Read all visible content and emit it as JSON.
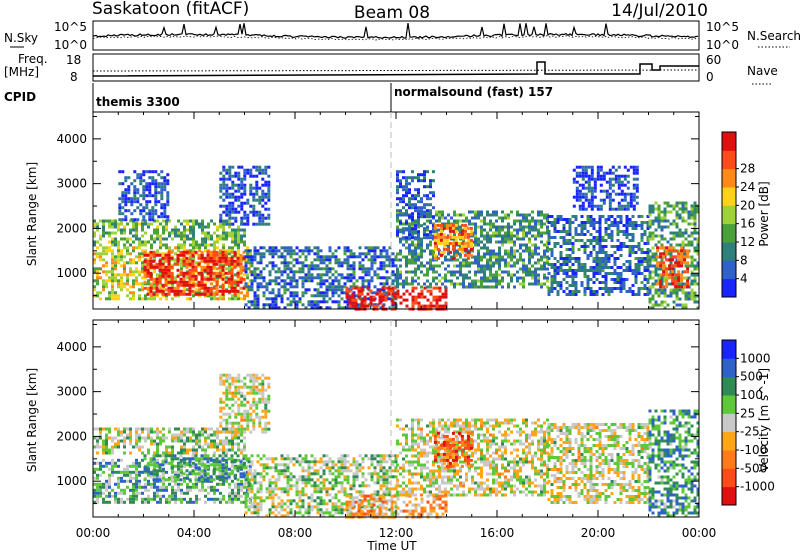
{
  "header": {
    "radar": "Saskatoon (fitACF)",
    "beam": "Beam 08",
    "date": "14/Jul/2010"
  },
  "noise_panel": {
    "left_label": "N.Sky",
    "right_label": "N.Search",
    "left_ticks": [
      "10^5",
      "10^0"
    ],
    "right_ticks": [
      "10^5",
      "10^0"
    ]
  },
  "freq_panel": {
    "left_label_line1": "Freq.",
    "left_label_line2": "[MHz]",
    "right_label": "Nave",
    "left_ticks": [
      "18",
      "8"
    ],
    "right_ticks": [
      "60",
      "0"
    ]
  },
  "cpid": {
    "label": "CPID",
    "modes": [
      {
        "name": "themis 3300",
        "start_hour": 0
      },
      {
        "name": "normalsound (fast) 157",
        "start_hour": 12
      }
    ]
  },
  "chart_data": [
    {
      "type": "heatmap",
      "panel": "power",
      "ylabel": "Slant Range [km]",
      "xlabel": "Time UT",
      "x_ticks": [
        "00:00",
        "04:00",
        "08:00",
        "12:00",
        "16:00",
        "20:00",
        "00:00"
      ],
      "xlim_hours": [
        0,
        24
      ],
      "y_ticks": [
        1000,
        2000,
        3000,
        4000
      ],
      "ylim": [
        200,
        4600
      ],
      "colorbar": {
        "label": "Power [dB]",
        "ticks": [
          "4",
          "8",
          "12",
          "16",
          "20",
          "24",
          "28"
        ],
        "colors": [
          "#1a24ff",
          "#2f62c8",
          "#2f7f7a",
          "#4aa03a",
          "#9fd23a",
          "#ffd21a",
          "#ff8a1a",
          "#ff4a1a",
          "#e01010"
        ]
      },
      "regions": [
        {
          "t0": 0.0,
          "t1": 6.0,
          "r0": 1600,
          "r1": 2200,
          "level": 0.4
        },
        {
          "t0": 0.0,
          "t1": 6.2,
          "r0": 400,
          "r1": 1600,
          "level": 0.55
        },
        {
          "t0": 2.0,
          "t1": 6.0,
          "r0": 500,
          "r1": 1500,
          "level": 0.9
        },
        {
          "t0": 1.0,
          "t1": 3.0,
          "r0": 2200,
          "r1": 3300,
          "level": 0.15
        },
        {
          "t0": 5.0,
          "t1": 7.0,
          "r0": 2100,
          "r1": 3400,
          "level": 0.15
        },
        {
          "t0": 6.0,
          "t1": 12.0,
          "r0": 200,
          "r1": 1600,
          "level": 0.2
        },
        {
          "t0": 10.0,
          "t1": 14.0,
          "r0": 200,
          "r1": 700,
          "level": 0.95
        },
        {
          "t0": 12.0,
          "t1": 18.0,
          "r0": 700,
          "r1": 2400,
          "level": 0.3
        },
        {
          "t0": 12.0,
          "t1": 13.5,
          "r0": 1800,
          "r1": 3300,
          "level": 0.15
        },
        {
          "t0": 13.5,
          "t1": 15.0,
          "r0": 1300,
          "r1": 2100,
          "level": 0.75
        },
        {
          "t0": 18.0,
          "t1": 22.0,
          "r0": 500,
          "r1": 2300,
          "level": 0.2
        },
        {
          "t0": 19.0,
          "t1": 21.5,
          "r0": 2400,
          "r1": 3400,
          "level": 0.12
        },
        {
          "t0": 22.0,
          "t1": 24.0,
          "r0": 200,
          "r1": 2600,
          "level": 0.35
        },
        {
          "t0": 22.3,
          "t1": 23.5,
          "r0": 700,
          "r1": 1600,
          "level": 0.85
        }
      ]
    },
    {
      "type": "heatmap",
      "panel": "velocity",
      "ylabel": "Slant Range [km]",
      "xlabel": "Time UT",
      "x_ticks": [
        "00:00",
        "04:00",
        "08:00",
        "12:00",
        "16:00",
        "20:00",
        "00:00"
      ],
      "xlim_hours": [
        0,
        24
      ],
      "y_ticks": [
        1000,
        2000,
        3000,
        4000
      ],
      "ylim": [
        200,
        4600
      ],
      "colorbar": {
        "label": "Velocity [m s^-1]",
        "ticks": [
          "1000",
          "500",
          "100",
          "25",
          "-25",
          "-100",
          "-500",
          "-1000"
        ],
        "colors": [
          "#1a24ff",
          "#2f62c8",
          "#2f8a55",
          "#5ec83a",
          "#c8c8c8",
          "#ffa51a",
          "#ff7a1a",
          "#ff4a1a",
          "#e01010"
        ]
      },
      "regions": [
        {
          "t0": 0.0,
          "t1": 6.0,
          "r0": 1600,
          "r1": 2200,
          "level": 0.45
        },
        {
          "t0": 0.0,
          "t1": 6.2,
          "r0": 500,
          "r1": 1500,
          "level": 0.35
        },
        {
          "t0": 2.0,
          "t1": 6.0,
          "r0": 1000,
          "r1": 1600,
          "level": 0.3
        },
        {
          "t0": 5.0,
          "t1": 7.0,
          "r0": 2100,
          "r1": 3400,
          "level": 0.5
        },
        {
          "t0": 6.0,
          "t1": 12.0,
          "r0": 200,
          "r1": 1600,
          "level": 0.45
        },
        {
          "t0": 10.0,
          "t1": 14.0,
          "r0": 200,
          "r1": 700,
          "level": 0.65
        },
        {
          "t0": 12.0,
          "t1": 18.0,
          "r0": 700,
          "r1": 2400,
          "level": 0.5
        },
        {
          "t0": 13.5,
          "t1": 15.0,
          "r0": 1300,
          "r1": 2100,
          "level": 0.78
        },
        {
          "t0": 18.0,
          "t1": 22.0,
          "r0": 500,
          "r1": 2300,
          "level": 0.5
        },
        {
          "t0": 22.0,
          "t1": 24.0,
          "r0": 200,
          "r1": 2600,
          "level": 0.3
        }
      ]
    }
  ]
}
